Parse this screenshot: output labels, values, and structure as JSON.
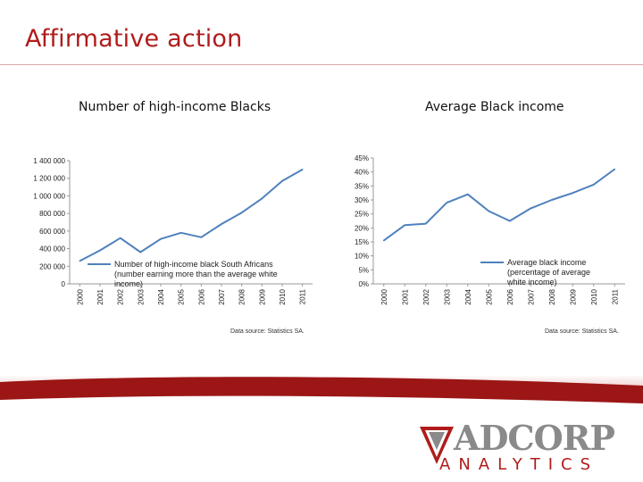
{
  "slide": {
    "title": "Affirmative action"
  },
  "colors": {
    "title": "#b01c1c",
    "series": "#4f81bd",
    "brand_red": "#b01c1c"
  },
  "chart_data": [
    {
      "type": "line",
      "title": "Number of high-income Blacks",
      "x": [
        "2000",
        "2001",
        "2002",
        "2003",
        "2004",
        "2005",
        "2006",
        "2007",
        "2008",
        "2009",
        "2010",
        "2011"
      ],
      "x_tick_labels": [
        "2000",
        "2001",
        "2002",
        "2003",
        "2004",
        "2005",
        "2006",
        "2007",
        "2008",
        "2009",
        "2010",
        "2011"
      ],
      "series": [
        {
          "name": "Number of high-income black South Africans (number earning more than the average white income)",
          "values": [
            260000,
            380000,
            520000,
            360000,
            510000,
            580000,
            530000,
            680000,
            810000,
            970000,
            1170000,
            1300000
          ]
        }
      ],
      "ylim": [
        0,
        1400000
      ],
      "y_ticks": [
        0,
        200000,
        400000,
        600000,
        800000,
        1000000,
        1200000,
        1400000
      ],
      "y_tick_labels": [
        "0",
        "200 000",
        "400 000",
        "600 000",
        "800 000",
        "1 000 000",
        "1 200 000",
        "1 400 000"
      ],
      "legend_placement": "bottom-right",
      "grid": false,
      "source": "Data source: Statistics SA."
    },
    {
      "type": "line",
      "title": "Average Black income",
      "x": [
        "2000",
        "2001",
        "2002",
        "2003",
        "2004",
        "2005",
        "2006",
        "2007",
        "2008",
        "2009",
        "2010",
        "2011"
      ],
      "x_tick_labels": [
        "2000",
        "2001",
        "2002",
        "2003",
        "2004",
        "2005",
        "2006",
        "2007",
        "2008",
        "2009",
        "2010",
        "2011"
      ],
      "series": [
        {
          "name": "Average black income (percentage of average white income)",
          "values": [
            15.5,
            21,
            21.5,
            29,
            32,
            26,
            22.5,
            27,
            30,
            32.5,
            35.5,
            41
          ]
        }
      ],
      "ylim": [
        0,
        45
      ],
      "y_ticks": [
        0,
        5,
        10,
        15,
        20,
        25,
        30,
        35,
        40,
        45
      ],
      "y_tick_labels": [
        "0%",
        "5%",
        "10%",
        "15%",
        "20%",
        "25%",
        "30%",
        "35%",
        "40%",
        "45%"
      ],
      "legend_placement": "bottom-right",
      "grid": false,
      "source": "Data source: Statistics SA."
    }
  ],
  "logo": {
    "name": "ADCORP",
    "tagline": "ANALYTICS"
  }
}
